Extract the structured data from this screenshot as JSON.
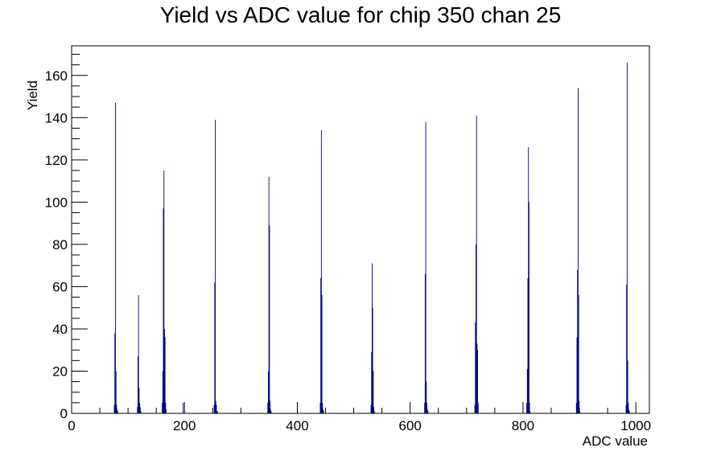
{
  "chart_data": {
    "type": "bar",
    "title": "Yield vs ADC value for chip 350 chan 25",
    "xlabel": "ADC value",
    "ylabel": "Yield",
    "xlim": [
      0,
      1024
    ],
    "ylim": [
      0,
      174
    ],
    "x_ticks": [
      0,
      200,
      400,
      600,
      800,
      1000
    ],
    "y_ticks": [
      0,
      20,
      40,
      60,
      80,
      100,
      120,
      140,
      160
    ],
    "grid": false,
    "legend": "none",
    "color": "#000080",
    "x_tick_labels": [
      "0",
      "200",
      "400",
      "600",
      "800",
      "1000"
    ],
    "y_tick_labels": [
      "0",
      "20",
      "40",
      "60",
      "80",
      "100",
      "120",
      "140",
      "160"
    ],
    "series": [
      {
        "x": [
          75,
          76,
          77,
          78,
          79,
          80,
          81,
          116,
          117,
          118,
          119,
          120,
          121,
          122,
          160,
          161,
          162,
          163,
          164,
          165,
          166,
          167,
          197,
          252,
          253,
          254,
          255,
          256,
          257,
          258,
          347,
          348,
          349,
          350,
          351,
          352,
          353,
          440,
          441,
          442,
          443,
          444,
          445,
          446,
          530,
          531,
          532,
          533,
          534,
          535,
          536,
          625,
          626,
          627,
          628,
          629,
          630,
          631,
          714,
          715,
          716,
          717,
          718,
          719,
          720,
          806,
          807,
          808,
          809,
          810,
          811,
          812,
          894,
          895,
          896,
          897,
          898,
          899,
          900,
          982,
          983,
          984,
          985,
          986,
          987,
          988
        ],
        "values": [
          4,
          38,
          147,
          20,
          4,
          2,
          1,
          3,
          27,
          56,
          12,
          5,
          3,
          1,
          5,
          20,
          97,
          115,
          40,
          36,
          5,
          2,
          5,
          4,
          62,
          139,
          6,
          4,
          1,
          1,
          5,
          20,
          112,
          89,
          6,
          2,
          1,
          5,
          64,
          134,
          56,
          5,
          2,
          1,
          4,
          29,
          71,
          50,
          20,
          3,
          1,
          5,
          66,
          138,
          15,
          5,
          2,
          1,
          4,
          43,
          80,
          141,
          33,
          30,
          5,
          5,
          21,
          64,
          126,
          100,
          5,
          1,
          5,
          36,
          68,
          154,
          56,
          6,
          1,
          4,
          61,
          166,
          25,
          5,
          2,
          1
        ]
      }
    ]
  }
}
